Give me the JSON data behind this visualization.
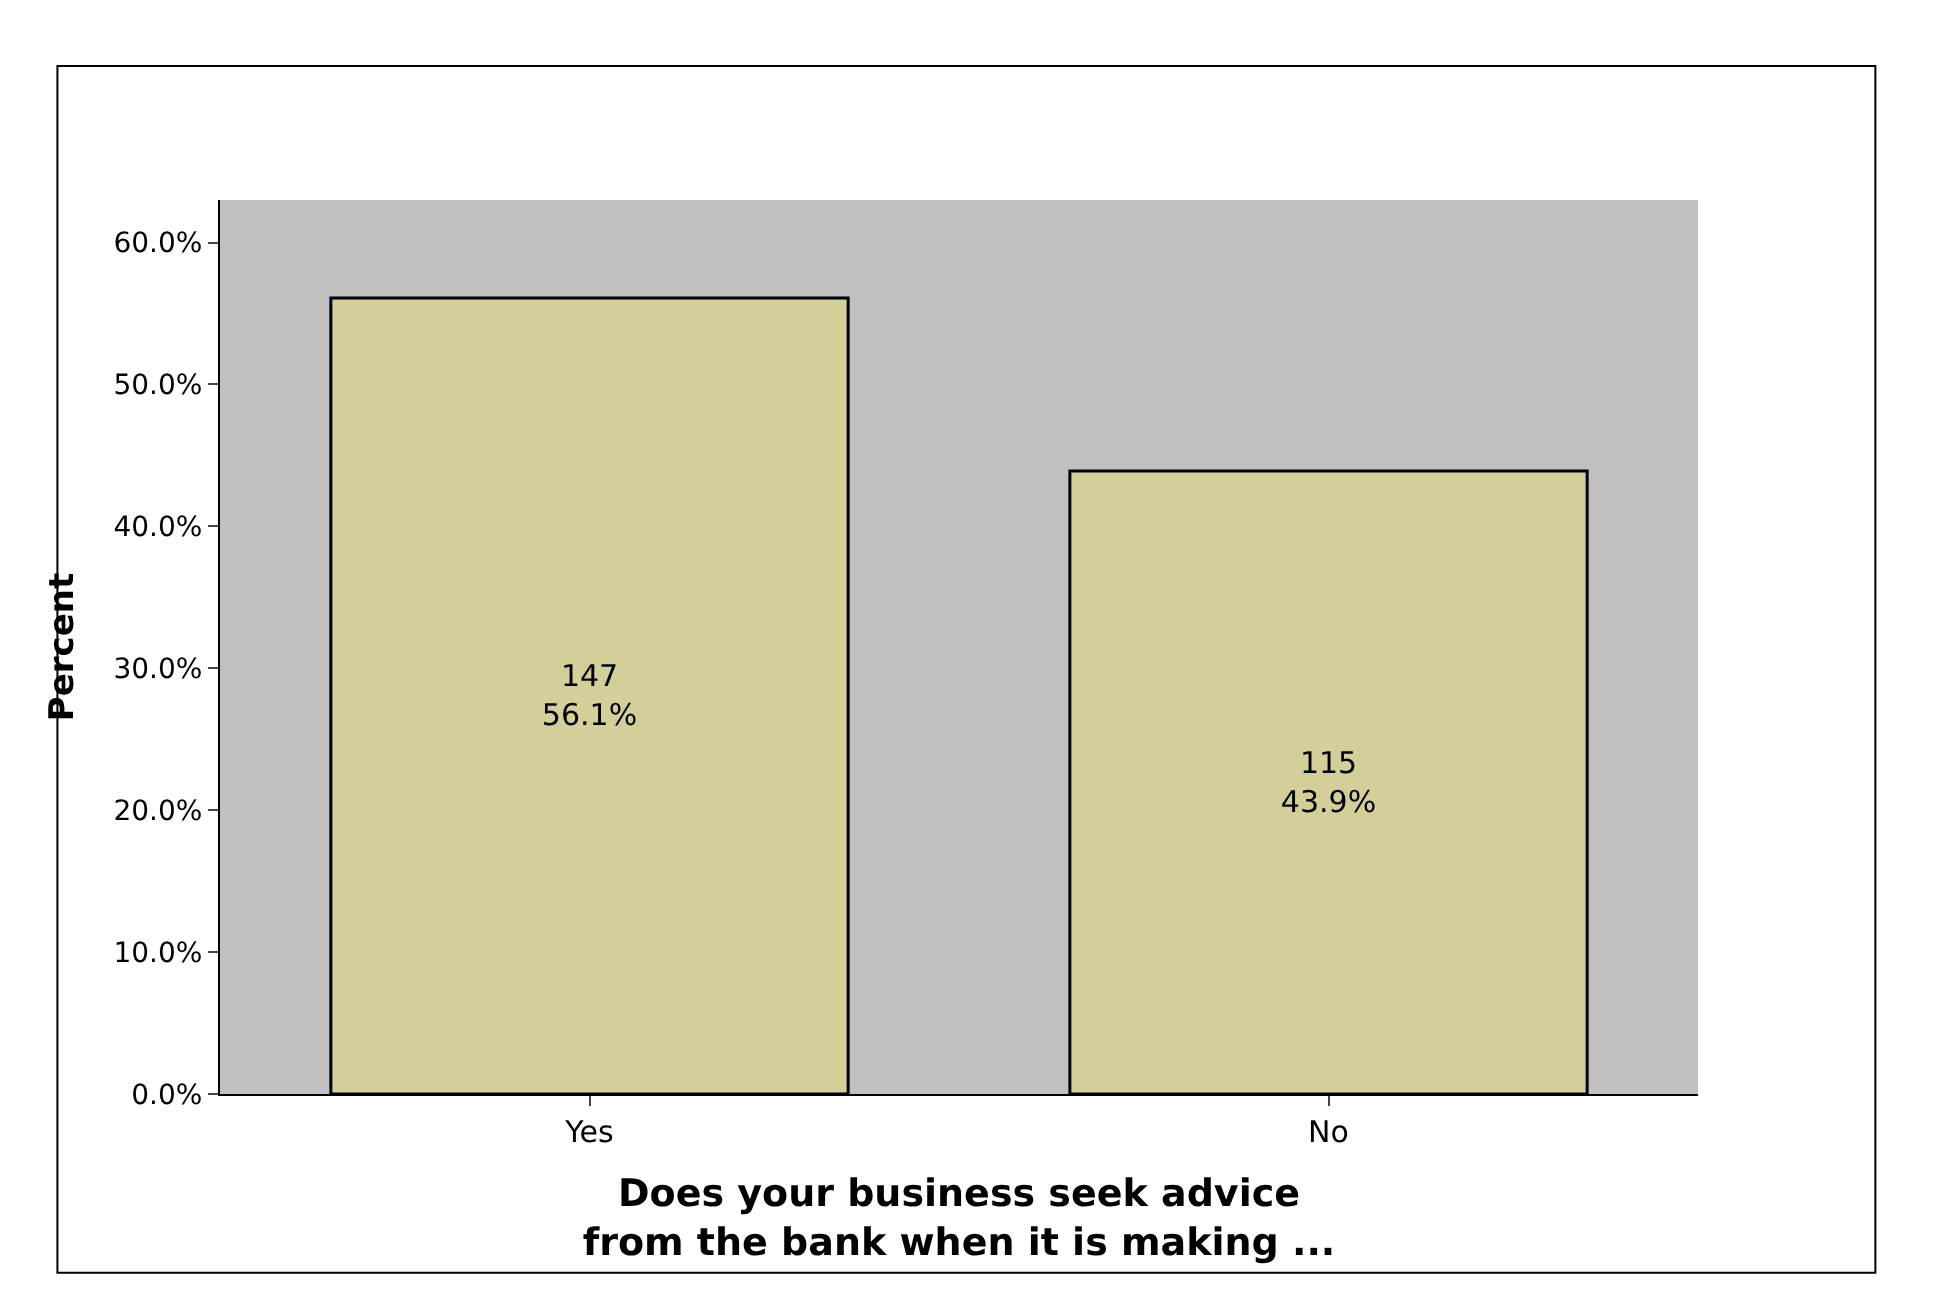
{
  "chart_data": {
    "type": "bar",
    "xlabel": "Does your business seek advice\nfrom the bank when it is making ...",
    "ylabel": "Percent",
    "categories": [
      "Yes",
      "No"
    ],
    "values": [
      56.1,
      43.9
    ],
    "value_labels": [
      "147\n56.1%",
      "115\n43.9%"
    ],
    "color": "#d4cf98",
    "ylim": [
      0,
      63
    ],
    "yticks": [
      {
        "value": 0,
        "label": "0.0%"
      },
      {
        "value": 10,
        "label": "10.0%"
      },
      {
        "value": 20,
        "label": "20.0%"
      },
      {
        "value": 30,
        "label": "30.0%"
      },
      {
        "value": 40,
        "label": "40.0%"
      },
      {
        "value": 50,
        "label": "50.0%"
      },
      {
        "value": 60,
        "label": "60.0%"
      }
    ],
    "grid": false
  }
}
